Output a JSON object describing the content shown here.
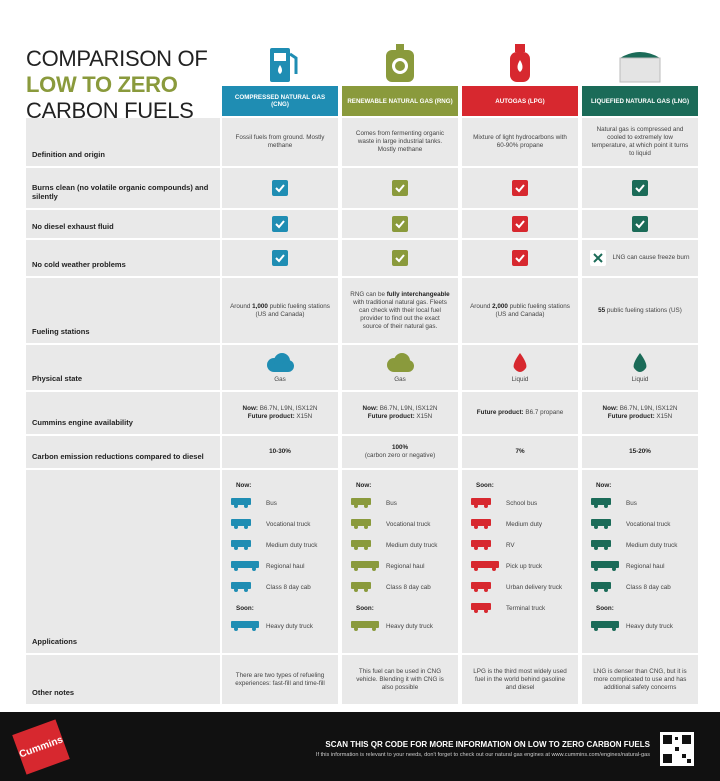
{
  "title": {
    "line1": "COMPARISON OF",
    "line2": "LOW TO ZERO",
    "line3": "CARBON FUELS"
  },
  "rows": [
    "Definition and origin",
    "Burns clean (no volatile organic compounds) and silently",
    "No diesel exhaust fluid",
    "No cold weather problems",
    "Fueling stations",
    "Physical state",
    "Cummins engine availability",
    "Carbon emission reductions compared to diesel",
    "Applications",
    "Other notes"
  ],
  "columns": [
    {
      "name": "COMPRESSED NATURAL GAS (CNG)",
      "color": "#1f8db3",
      "icon": "pump",
      "definition": "Fossil fuels from ground. Mostly methane",
      "burns_clean": true,
      "no_def_fluid": true,
      "cold_weather": true,
      "fueling_stations": [
        {
          "text": "Around "
        },
        {
          "text": "1,000",
          "bold": true
        },
        {
          "text": " public fueling stations (US and Canada)"
        }
      ],
      "physical_state": {
        "icon": "cloud",
        "label": "Gas"
      },
      "engines": [
        {
          "label": "Now:",
          "value": "B6.7N, L9N, ISX12N"
        },
        {
          "label": "Future product:",
          "value": "X15N"
        }
      ],
      "emission": {
        "value": "10-30%"
      },
      "applications": [
        {
          "label": "Now:",
          "items": [
            "Bus",
            "Vocational truck",
            "Medium duty truck",
            "Regional haul",
            "Class 8 day cab"
          ]
        },
        {
          "label": "Soon:",
          "items": [
            "Heavy duty truck"
          ]
        }
      ],
      "notes": "There are two types of refueling experiences: fast-fill and time-fill"
    },
    {
      "name": "RENEWABLE NATURAL GAS (RNG)",
      "color": "#8a9a3c",
      "icon": "digester",
      "definition": "Comes from fermenting organic waste in large industrial tanks. Mostly methane",
      "burns_clean": true,
      "no_def_fluid": true,
      "cold_weather": true,
      "fueling_stations": [
        {
          "text": "RNG can be "
        },
        {
          "text": "fully interchangeable",
          "bold": true
        },
        {
          "text": " with traditional natural gas. Fleets can check with their local fuel provider to find out the exact source of their natural gas."
        }
      ],
      "physical_state": {
        "icon": "cloud",
        "label": "Gas"
      },
      "engines": [
        {
          "label": "Now:",
          "value": "B6.7N, L9N, ISX12N"
        },
        {
          "label": "Future product:",
          "value": "X15N"
        }
      ],
      "emission": {
        "value": "100%",
        "note": "(carbon zero or negative)"
      },
      "applications": [
        {
          "label": "Now:",
          "items": [
            "Bus",
            "Vocational truck",
            "Medium duty truck",
            "Regional haul",
            "Class 8 day cab"
          ]
        },
        {
          "label": "Soon:",
          "items": [
            "Heavy duty truck"
          ]
        }
      ],
      "notes": "This fuel can be used in CNG vehicle. Blending it with CNG is also possible"
    },
    {
      "name": "AUTOGAS (LPG)",
      "color": "#d7282f",
      "icon": "cylinder",
      "definition": "Mixture of light hydrocarbons with 60-90% propane",
      "burns_clean": true,
      "no_def_fluid": true,
      "cold_weather": true,
      "fueling_stations": [
        {
          "text": "Around "
        },
        {
          "text": "2,000",
          "bold": true
        },
        {
          "text": " public fueling stations (US and Canada)"
        }
      ],
      "physical_state": {
        "icon": "drop",
        "label": "Liquid"
      },
      "engines": [
        {
          "label": "Future product:",
          "value": "B6.7 propane"
        }
      ],
      "emission": {
        "value": "7%"
      },
      "applications": [
        {
          "label": "Soon:",
          "items": [
            "School bus",
            "Medium duty",
            "RV",
            "Pick up truck",
            "Urban delivery truck",
            "Terminal truck"
          ]
        }
      ],
      "notes": "LPG is the third most widely used fuel in the world behind gasoline and diesel"
    },
    {
      "name": "LIQUEFIED NATURAL GAS (LNG)",
      "color": "#1b6b58",
      "icon": "tank",
      "definition": "Natural gas is compressed and cooled to extremely low temperature, at which point it turns to liquid",
      "burns_clean": true,
      "no_def_fluid": true,
      "cold_weather": false,
      "cold_weather_note": "LNG can cause freeze burn",
      "fueling_stations": [
        {
          "text": "55",
          "bold": true
        },
        {
          "text": " public fueling stations (US)"
        }
      ],
      "physical_state": {
        "icon": "drop",
        "label": "Liquid"
      },
      "engines": [
        {
          "label": "Now:",
          "value": "B6.7N, L9N, ISX12N"
        },
        {
          "label": "Future product:",
          "value": "X15N"
        }
      ],
      "emission": {
        "value": "15-20%"
      },
      "applications": [
        {
          "label": "Now:",
          "items": [
            "Bus",
            "Vocational truck",
            "Medium duty truck",
            "Regional haul",
            "Class 8 day cab"
          ]
        },
        {
          "label": "Soon:",
          "items": [
            "Heavy duty truck"
          ]
        }
      ],
      "notes": "LNG is denser than CNG, but it is more complicated to use and has additional safety concerns"
    }
  ],
  "footer": {
    "logo": "Cummins",
    "headline": "SCAN THIS QR CODE FOR MORE INFORMATION ON LOW TO ZERO CARBON FUELS",
    "subline": "If this information is relevant to your needs, don't forget to check out our natural gas engines at www.cummins.com/engines/natural-gas"
  }
}
